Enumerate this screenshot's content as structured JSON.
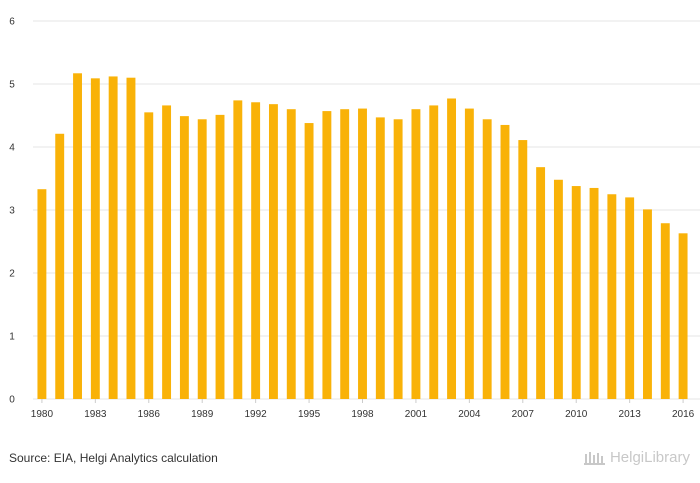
{
  "chart_data": {
    "type": "bar",
    "title": "",
    "xlabel": "",
    "ylabel": "",
    "ylim": [
      0,
      6
    ],
    "yticks": [
      "0",
      "1",
      "2",
      "3",
      "4",
      "5",
      "6"
    ],
    "grid": true,
    "legend": "none",
    "bar_color": "#f9b208",
    "categories": [
      "1980",
      "1981",
      "1982",
      "1983",
      "1984",
      "1985",
      "1986",
      "1987",
      "1988",
      "1989",
      "1990",
      "1991",
      "1992",
      "1993",
      "1994",
      "1995",
      "1996",
      "1997",
      "1998",
      "1999",
      "2000",
      "2001",
      "2002",
      "2003",
      "2004",
      "2005",
      "2006",
      "2007",
      "2008",
      "2009",
      "2010",
      "2011",
      "2012",
      "2013",
      "2014",
      "2015",
      "2016"
    ],
    "x_tick_labels": [
      "1980",
      "",
      "",
      "1983",
      "",
      "",
      "1986",
      "",
      "",
      "1989",
      "",
      "",
      "1992",
      "",
      "",
      "1995",
      "",
      "",
      "1998",
      "",
      "",
      "2001",
      "",
      "",
      "2004",
      "",
      "",
      "2007",
      "",
      "",
      "2010",
      "",
      "",
      "2013",
      "",
      "",
      "2016"
    ],
    "values": [
      3.33,
      4.21,
      5.17,
      5.09,
      5.12,
      5.1,
      4.55,
      4.66,
      4.49,
      4.44,
      4.51,
      4.74,
      4.71,
      4.68,
      4.6,
      4.38,
      4.57,
      4.6,
      4.61,
      4.47,
      4.44,
      4.6,
      4.66,
      4.77,
      4.61,
      4.44,
      4.35,
      4.11,
      3.68,
      3.48,
      3.38,
      3.35,
      3.25,
      3.2,
      3.01,
      2.79,
      2.63
    ]
  },
  "footer": {
    "source": "Source: EIA, Helgi Analytics calculation",
    "brand": "HelgiLibrary",
    "brand_icon": "library-columns-icon"
  }
}
